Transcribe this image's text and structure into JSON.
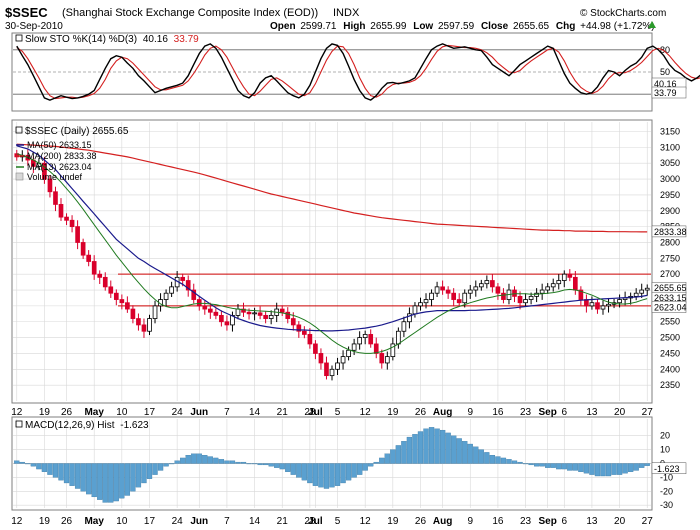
{
  "header": {
    "symbol": "$SSEC",
    "name": "(Shanghai Stock Exchange Composite Index (EOD))",
    "exchange": "INDX",
    "date": "30-Sep-2010",
    "watermark": "© StockCharts.com",
    "quote": {
      "open_label": "Open",
      "open": "2599.71",
      "high_label": "High",
      "high": "2655.99",
      "low_label": "Low",
      "low": "2597.59",
      "close_label": "Close",
      "close": "2655.65",
      "chg_label": "Chg",
      "chg": "+44.98 (+1.72%)"
    }
  },
  "colors": {
    "up": "#000000",
    "down": "#d9002b",
    "ma50": "#1a1a8c",
    "ma200": "#d42020",
    "ma13": "#1f7a1f",
    "sto_k": "#000000",
    "sto_d": "#d42020",
    "macd": "#5aa0d0",
    "grid": "#d8d8d8",
    "resistance": "#cc0000"
  },
  "chart_data": [
    {
      "type": "line",
      "name": "stochastic",
      "legend_label": "Slow STO %K(14) %D(3)",
      "k_value": "40.16",
      "d_value": "33.79",
      "ylim": [
        0,
        100
      ],
      "levels": [
        20,
        50,
        80
      ],
      "level_labels": [
        "80",
        "50",
        "20"
      ],
      "k_tag": "40.16",
      "d_tag": "33.79",
      "k": [
        85,
        72,
        60,
        45,
        30,
        15,
        12,
        15,
        18,
        16,
        14,
        15,
        17,
        20,
        25,
        40,
        55,
        68,
        72,
        70,
        62,
        55,
        45,
        38,
        30,
        22,
        25,
        28,
        30,
        32,
        35,
        45,
        60,
        75,
        85,
        88,
        82,
        70,
        55,
        40,
        25,
        18,
        15,
        22,
        35,
        42,
        45,
        38,
        30,
        22,
        18,
        15,
        20,
        32,
        50,
        68,
        82,
        88,
        86,
        75,
        58,
        40,
        25,
        15,
        12,
        18,
        28,
        35,
        36,
        34,
        36,
        38,
        42,
        55,
        68,
        80,
        85,
        88,
        85,
        82,
        83,
        84,
        82,
        80,
        79,
        70,
        60,
        55,
        50,
        45,
        52,
        60,
        65,
        70,
        75,
        80,
        85,
        82,
        65,
        48,
        35,
        28,
        22,
        20,
        22,
        30,
        42,
        52,
        50,
        45,
        52,
        58,
        62,
        70,
        82,
        85,
        80,
        72,
        60,
        52,
        48,
        42,
        38,
        42,
        48,
        52,
        55,
        60,
        62,
        60,
        56,
        55,
        58,
        60,
        65,
        75,
        82,
        88,
        80,
        70,
        60,
        48,
        36,
        22,
        18,
        15,
        15,
        18,
        24,
        32,
        40.16
      ],
      "d": [
        83,
        78,
        68,
        55,
        42,
        28,
        18,
        14,
        15,
        16,
        16,
        15,
        16,
        18,
        21,
        28,
        40,
        55,
        65,
        70,
        68,
        62,
        54,
        46,
        38,
        30,
        26,
        26,
        28,
        30,
        32,
        38,
        48,
        60,
        73,
        82,
        85,
        80,
        70,
        56,
        42,
        30,
        20,
        18,
        24,
        32,
        40,
        42,
        38,
        32,
        26,
        20,
        18,
        22,
        34,
        50,
        66,
        78,
        85,
        84,
        75,
        60,
        42,
        28,
        18,
        16,
        20,
        28,
        33,
        35,
        35,
        36,
        39,
        45,
        55,
        67,
        78,
        84,
        86,
        85,
        84,
        83,
        83,
        82,
        80,
        76,
        70,
        62,
        56,
        50,
        49,
        52,
        59,
        65,
        70,
        75,
        80,
        82,
        77,
        65,
        50,
        38,
        29,
        24,
        21,
        24,
        31,
        41,
        48,
        49,
        49,
        52,
        57,
        63,
        71,
        79,
        82,
        79,
        72,
        63,
        55,
        48,
        43,
        41,
        43,
        47,
        52,
        56,
        59,
        60,
        59,
        57,
        57,
        58,
        61,
        67,
        75,
        83,
        84,
        78,
        70,
        58,
        48,
        35,
        25,
        19,
        16,
        16,
        19,
        25,
        33.79
      ]
    },
    {
      "type": "candlestick",
      "name": "price",
      "legend_label": "$SSEC (Daily) 2655.65",
      "ylim": [
        2300,
        3180
      ],
      "y_ticks": [
        "3150",
        "3100",
        "3050",
        "3000",
        "2950",
        "2900",
        "2850",
        "2800",
        "2750",
        "2700",
        "2650",
        "2600",
        "2550",
        "2500",
        "2450",
        "2400",
        "2350"
      ],
      "x_labels": [
        "12",
        "19",
        "26",
        "May",
        "10",
        "17",
        "24",
        "Jun",
        "7",
        "14",
        "21",
        "28",
        "Jul",
        "5",
        "12",
        "19",
        "26",
        "Aug",
        "9",
        "16",
        "23",
        "Sep",
        "6",
        "13",
        "20",
        "27"
      ],
      "x_label_day_index": [
        0,
        5,
        9,
        14,
        19,
        24,
        29,
        33,
        38,
        43,
        48,
        53,
        54,
        58,
        63,
        68,
        73,
        77,
        82,
        87,
        92,
        96,
        99,
        104,
        109,
        114
      ],
      "volume_label": "Volume undef",
      "resistance_levels": [
        2700,
        2600
      ],
      "close_tag": "2655.65",
      "ma_tags": {
        "ma200": "2833.38",
        "ma50": "2633.15",
        "ma13": "2623.04"
      },
      "series": [
        {
          "name": "MA(50) 2633.15",
          "key": "ma50"
        },
        {
          "name": "MA(200) 2833.38",
          "key": "ma200"
        },
        {
          "name": "MA(13) 2623.04",
          "key": "ma13"
        }
      ],
      "close": [
        3070,
        3075,
        3060,
        3040,
        3050,
        3000,
        2960,
        2920,
        2880,
        2870,
        2850,
        2800,
        2760,
        2740,
        2700,
        2690,
        2660,
        2640,
        2620,
        2610,
        2590,
        2560,
        2540,
        2520,
        2560,
        2600,
        2620,
        2640,
        2660,
        2690,
        2680,
        2650,
        2620,
        2600,
        2590,
        2580,
        2570,
        2550,
        2540,
        2570,
        2590,
        2580,
        2575,
        2578,
        2570,
        2560,
        2570,
        2590,
        2580,
        2560,
        2540,
        2520,
        2510,
        2480,
        2450,
        2420,
        2380,
        2400,
        2420,
        2440,
        2460,
        2480,
        2500,
        2510,
        2480,
        2450,
        2420,
        2440,
        2480,
        2520,
        2550,
        2575,
        2600,
        2610,
        2620,
        2640,
        2660,
        2650,
        2640,
        2620,
        2610,
        2640,
        2650,
        2660,
        2670,
        2680,
        2660,
        2640,
        2620,
        2650,
        2630,
        2610,
        2620,
        2630,
        2640,
        2650,
        2660,
        2670,
        2680,
        2700,
        2690,
        2650,
        2620,
        2600,
        2610,
        2590,
        2600,
        2605,
        2610,
        2620,
        2625,
        2630,
        2640,
        2650,
        2655.65
      ],
      "ma50": [
        3105,
        3100,
        3095,
        3085,
        3075,
        3060,
        3045,
        3030,
        3010,
        2990,
        2970,
        2950,
        2930,
        2910,
        2890,
        2870,
        2850,
        2830,
        2810,
        2795,
        2780,
        2765,
        2750,
        2740,
        2728,
        2718,
        2708,
        2698,
        2688,
        2678,
        2668,
        2655,
        2643,
        2630,
        2618,
        2606,
        2594,
        2584,
        2576,
        2568,
        2560,
        2554,
        2548,
        2543,
        2538,
        2535,
        2532,
        2530,
        2528,
        2526,
        2525,
        2524,
        2524,
        2523,
        2522,
        2522,
        2521,
        2521,
        2522,
        2523,
        2524,
        2526,
        2528,
        2530,
        2533,
        2536,
        2540,
        2545,
        2550,
        2556,
        2562,
        2568,
        2574,
        2578,
        2581,
        2583,
        2585,
        2585,
        2585,
        2585,
        2585,
        2585,
        2586,
        2586,
        2587,
        2588,
        2589,
        2590,
        2591,
        2592,
        2594,
        2596,
        2598,
        2600,
        2602,
        2604,
        2606,
        2608,
        2610,
        2612,
        2614,
        2616,
        2618,
        2619,
        2620,
        2621,
        2622,
        2623,
        2624,
        2625,
        2626,
        2627,
        2628,
        2630,
        2633.15
      ],
      "ma200": [
        3110,
        3109,
        3108,
        3107,
        3106,
        3105,
        3104,
        3103,
        3101,
        3099,
        3097,
        3095,
        3093,
        3091,
        3088,
        3085,
        3082,
        3079,
        3076,
        3073,
        3070,
        3066,
        3062,
        3058,
        3054,
        3050,
        3046,
        3042,
        3038,
        3034,
        3030,
        3026,
        3022,
        3018,
        3013,
        3008,
        3003,
        2998,
        2993,
        2988,
        2983,
        2978,
        2973,
        2968,
        2963,
        2958,
        2953,
        2949,
        2945,
        2941,
        2937,
        2933,
        2929,
        2925,
        2921,
        2917,
        2913,
        2909,
        2905,
        2901,
        2897,
        2893,
        2890,
        2887,
        2884,
        2881,
        2878,
        2876,
        2874,
        2872,
        2870,
        2868,
        2866,
        2864,
        2862,
        2860,
        2858,
        2857,
        2856,
        2855,
        2854,
        2853,
        2852,
        2851,
        2850,
        2849,
        2848,
        2847,
        2846,
        2845,
        2844,
        2843,
        2842,
        2841,
        2840,
        2839,
        2839,
        2838,
        2838,
        2837,
        2837,
        2836,
        2836,
        2836,
        2835,
        2835,
        2835,
        2834,
        2834,
        2834,
        2834,
        2833.8,
        2833.6,
        2833.5,
        2833.38
      ],
      "ma13": [
        3080,
        3075,
        3068,
        3060,
        3050,
        3038,
        3024,
        3008,
        2990,
        2970,
        2950,
        2928,
        2905,
        2880,
        2856,
        2832,
        2808,
        2784,
        2760,
        2738,
        2716,
        2694,
        2674,
        2654,
        2636,
        2620,
        2606,
        2598,
        2594,
        2594,
        2598,
        2602,
        2606,
        2608,
        2608,
        2606,
        2604,
        2600,
        2596,
        2592,
        2590,
        2588,
        2586,
        2585,
        2584,
        2583,
        2582,
        2580,
        2578,
        2574,
        2570,
        2564,
        2556,
        2546,
        2534,
        2520,
        2506,
        2492,
        2480,
        2470,
        2462,
        2456,
        2452,
        2450,
        2450,
        2452,
        2456,
        2462,
        2470,
        2480,
        2492,
        2504,
        2516,
        2528,
        2540,
        2552,
        2564,
        2574,
        2584,
        2592,
        2598,
        2604,
        2610,
        2615,
        2620,
        2625,
        2628,
        2632,
        2634,
        2636,
        2638,
        2638,
        2638,
        2637,
        2637,
        2638,
        2640,
        2642,
        2645,
        2650,
        2652,
        2650,
        2646,
        2640,
        2634,
        2626,
        2618,
        2612,
        2608,
        2606,
        2606,
        2608,
        2612,
        2618,
        2623.04
      ]
    },
    {
      "type": "bar",
      "name": "macd",
      "legend_label": "MACD(12,26,9) Hist",
      "value": "-1.623",
      "ylim": [
        -32,
        32
      ],
      "y_ticks": [
        "20",
        "10",
        "0",
        "-10",
        "-20",
        "-30"
      ],
      "value_tag": "-1.623",
      "values": [
        2,
        1,
        0,
        -2,
        -4,
        -6,
        -8,
        -10,
        -12,
        -14,
        -16,
        -18,
        -20,
        -22,
        -24,
        -26,
        -28,
        -28,
        -27,
        -25,
        -23,
        -20,
        -17,
        -14,
        -11,
        -8,
        -5,
        -2,
        0,
        2,
        4,
        6,
        7,
        7,
        6,
        5,
        4,
        3,
        2,
        2,
        1,
        1,
        0,
        0,
        -1,
        -1,
        -2,
        -3,
        -4,
        -6,
        -8,
        -10,
        -12,
        -14,
        -16,
        -17,
        -18,
        -17,
        -16,
        -14,
        -12,
        -10,
        -8,
        -5,
        -2,
        1,
        4,
        7,
        10,
        13,
        16,
        19,
        21,
        23,
        25,
        26,
        25,
        24,
        22,
        20,
        18,
        16,
        14,
        12,
        10,
        8,
        6,
        5,
        4,
        3,
        2,
        1,
        0,
        -1,
        -2,
        -2,
        -3,
        -3,
        -4,
        -4,
        -5,
        -5,
        -6,
        -7,
        -8,
        -9,
        -9,
        -9,
        -8,
        -8,
        -7,
        -6,
        -5,
        -3,
        -1.623
      ]
    }
  ]
}
